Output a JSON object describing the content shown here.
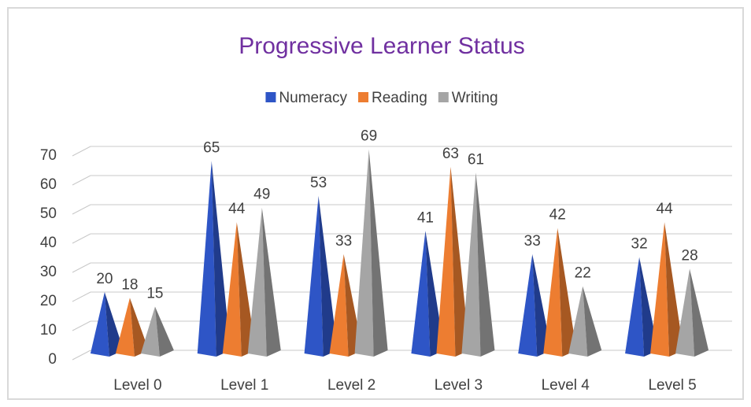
{
  "chart_data": {
    "type": "bar",
    "title": "Progressive Learner Status",
    "categories": [
      "Level 0",
      "Level 1",
      "Level 2",
      "Level 3",
      "Level 4",
      "Level 5"
    ],
    "series": [
      {
        "name": "Numeracy",
        "color": "#2e55c6",
        "values": [
          20,
          65,
          53,
          41,
          33,
          32
        ]
      },
      {
        "name": "Reading",
        "color": "#ed7d31",
        "values": [
          18,
          44,
          33,
          63,
          42,
          44
        ]
      },
      {
        "name": "Writing",
        "color": "#a5a5a5",
        "values": [
          15,
          49,
          69,
          61,
          22,
          28
        ]
      }
    ],
    "ylim": [
      0,
      70
    ],
    "yticks": [
      0,
      10,
      20,
      30,
      40,
      50,
      60,
      70
    ],
    "grid": true,
    "legend": "top"
  }
}
